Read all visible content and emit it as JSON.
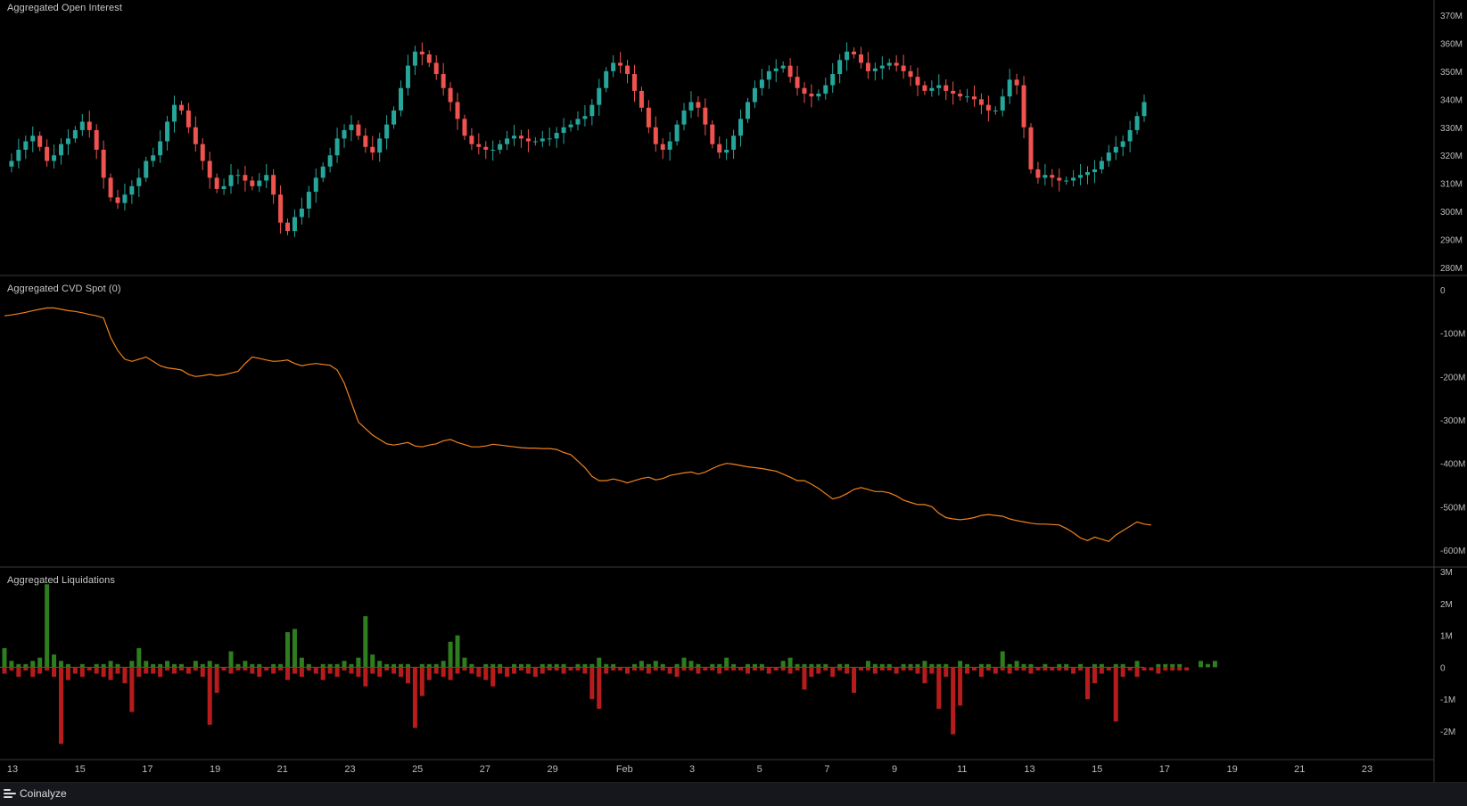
{
  "panels": {
    "oi": {
      "title": "Aggregated Open Interest",
      "ticks": [
        "370M",
        "360M",
        "350M",
        "340M",
        "330M",
        "320M",
        "310M",
        "300M",
        "290M",
        "280M"
      ]
    },
    "cvd": {
      "title": "Aggregated CVD Spot (0)",
      "ticks": [
        "0",
        "-100M",
        "-200M",
        "-300M",
        "-400M",
        "-500M",
        "-600M"
      ]
    },
    "liq": {
      "title": "Aggregated Liquidations",
      "ticks": [
        "3M",
        "2M",
        "1M",
        "0",
        "-1M",
        "-2M"
      ]
    }
  },
  "x_axis": {
    "labels": [
      "13",
      "15",
      "17",
      "19",
      "21",
      "23",
      "25",
      "27",
      "29",
      "Feb",
      "3",
      "5",
      "7",
      "9",
      "11",
      "13",
      "15",
      "17",
      "19",
      "21",
      "23"
    ]
  },
  "footer": {
    "brand": "Coinalyze"
  },
  "colors": {
    "up": "#26a69a",
    "down": "#ef5350",
    "cvd_line": "#f0821e",
    "liq_long": "#2e7d1f",
    "liq_short": "#b71c1c",
    "grid": "#2a2a2a",
    "separator": "#3a3a3a"
  },
  "chart_data": [
    {
      "type": "candlestick",
      "title": "Aggregated Open Interest",
      "unit": "M",
      "ylim": [
        278,
        372
      ],
      "x_range_days": [
        "Jan 13",
        "Feb 15"
      ],
      "series": [
        {
          "name": "Aggregated Open Interest",
          "close_path": [
            316,
            318,
            322,
            325,
            327,
            323,
            318,
            320,
            324,
            326,
            329,
            332,
            329,
            322,
            312,
            305,
            303,
            306,
            309,
            312,
            318,
            320,
            325,
            332,
            338,
            336,
            330,
            324,
            318,
            312,
            308,
            309,
            313,
            313,
            311,
            309,
            311,
            313,
            306,
            296,
            293,
            298,
            301,
            307,
            312,
            316,
            320,
            326,
            329,
            331,
            327,
            323,
            321,
            326,
            331,
            336,
            344,
            352,
            357,
            356,
            353,
            349,
            344,
            339,
            333,
            327,
            324,
            323,
            322,
            322,
            324,
            326,
            327,
            326,
            325,
            325,
            326,
            326,
            328,
            330,
            331,
            333,
            334,
            338,
            344,
            350,
            353,
            352,
            349,
            343,
            337,
            330,
            324,
            322,
            325,
            331,
            336,
            339,
            337,
            331,
            324,
            321,
            322,
            327,
            333,
            339,
            344,
            347,
            350,
            351,
            352,
            348,
            344,
            342,
            341,
            342,
            345,
            349,
            354,
            357,
            356,
            353,
            350,
            351,
            352,
            353,
            352,
            350,
            348,
            345,
            343,
            344,
            345,
            343,
            342,
            341,
            341,
            340,
            338,
            336,
            336,
            341,
            347,
            345,
            330,
            315,
            312,
            313,
            312,
            311,
            311,
            312,
            313,
            314,
            315,
            318,
            321,
            323,
            325,
            329,
            334,
            339,
            336,
            333,
            330,
            329,
            327,
            326,
            325,
            324,
            325,
            327,
            328,
            327,
            326,
            325,
            324
          ]
        }
      ]
    },
    {
      "type": "line",
      "title": "Aggregated CVD Spot (0)",
      "unit": "M",
      "ylim": [
        -650,
        10
      ],
      "series": [
        {
          "name": "Aggregated CVD Spot (0)",
          "values": [
            -60,
            -58,
            -55,
            -52,
            -48,
            -45,
            -42,
            -42,
            -45,
            -48,
            -50,
            -53,
            -57,
            -60,
            -65,
            -110,
            -140,
            -160,
            -165,
            -160,
            -155,
            -165,
            -175,
            -180,
            -182,
            -185,
            -195,
            -200,
            -198,
            -195,
            -198,
            -196,
            -192,
            -188,
            -170,
            -155,
            -158,
            -162,
            -165,
            -164,
            -162,
            -170,
            -175,
            -172,
            -170,
            -172,
            -174,
            -185,
            -215,
            -260,
            -305,
            -320,
            -335,
            -345,
            -355,
            -358,
            -355,
            -352,
            -360,
            -362,
            -358,
            -355,
            -348,
            -345,
            -352,
            -357,
            -362,
            -362,
            -360,
            -356,
            -358,
            -360,
            -362,
            -364,
            -365,
            -365,
            -366,
            -366,
            -368,
            -375,
            -380,
            -395,
            -410,
            -430,
            -440,
            -440,
            -436,
            -440,
            -445,
            -440,
            -435,
            -432,
            -438,
            -435,
            -428,
            -425,
            -422,
            -420,
            -425,
            -420,
            -412,
            -405,
            -400,
            -402,
            -405,
            -408,
            -410,
            -412,
            -415,
            -418,
            -425,
            -432,
            -440,
            -440,
            -448,
            -458,
            -470,
            -482,
            -478,
            -470,
            -460,
            -456,
            -460,
            -465,
            -465,
            -468,
            -475,
            -485,
            -490,
            -495,
            -495,
            -500,
            -515,
            -525,
            -528,
            -530,
            -528,
            -525,
            -520,
            -518,
            -520,
            -522,
            -528,
            -532,
            -535,
            -538,
            -540,
            -540,
            -541,
            -542,
            -550,
            -560,
            -572,
            -578,
            -570,
            -575,
            -580,
            -565,
            -555,
            -545,
            -535,
            -540,
            -542
          ]
        }
      ]
    },
    {
      "type": "bar",
      "title": "Aggregated Liquidations",
      "unit": "M",
      "ylim": [
        -2.9,
        3
      ],
      "series": [
        {
          "name": "long",
          "values": [
            0.6,
            0.2,
            0.1,
            0.1,
            0.2,
            0.3,
            2.6,
            0.4,
            0.2,
            0.1,
            0.0,
            0.1,
            0.0,
            0.1,
            0.1,
            0.2,
            0.1,
            0.0,
            0.2,
            0.6,
            0.2,
            0.1,
            0.1,
            0.2,
            0.1,
            0.1,
            0.0,
            0.2,
            0.1,
            0.2,
            0.1,
            0.0,
            0.5,
            0.1,
            0.2,
            0.1,
            0.1,
            0.0,
            0.1,
            0.1,
            1.1,
            1.2,
            0.3,
            0.1,
            0.0,
            0.1,
            0.1,
            0.1,
            0.2,
            0.1,
            0.3,
            1.6,
            0.4,
            0.2,
            0.1,
            0.1,
            0.1,
            0.1,
            0.0,
            0.1,
            0.1,
            0.1,
            0.2,
            0.8,
            1.0,
            0.3,
            0.1,
            0.0,
            0.1,
            0.1,
            0.1,
            0.0,
            0.1,
            0.1,
            0.1,
            0.0,
            0.1,
            0.1,
            0.1,
            0.1,
            0.0,
            0.1,
            0.1,
            0.1,
            0.3,
            0.1,
            0.1,
            0.0,
            0.0,
            0.1,
            0.2,
            0.1,
            0.2,
            0.1,
            0.0,
            0.1,
            0.3,
            0.2,
            0.1,
            0.0,
            0.1,
            0.1,
            0.3,
            0.1,
            0.0,
            0.1,
            0.1,
            0.1,
            0.0,
            0.0,
            0.2,
            0.3,
            0.1,
            0.1,
            0.1,
            0.1,
            0.1,
            0.0,
            0.1,
            0.1,
            0.0,
            0.0,
            0.2,
            0.1,
            0.1,
            0.1,
            0.0,
            0.1,
            0.1,
            0.1,
            0.2,
            0.1,
            0.1,
            0.1,
            0.0,
            0.2,
            0.1,
            0.0,
            0.1,
            0.1,
            0.0,
            0.5,
            0.1,
            0.2,
            0.1,
            0.1,
            0.0,
            0.1,
            0.0,
            0.1,
            0.1,
            0.0,
            0.1,
            0.0,
            0.1,
            0.1,
            0.0,
            0.1,
            0.1,
            0.0,
            0.2,
            0.0,
            0.0,
            0.1,
            0.1,
            0.1,
            0.1,
            0.0,
            0.0,
            0.2,
            0.1,
            0.2,
            0.0
          ]
        },
        {
          "name": "short",
          "values": [
            -0.2,
            -0.1,
            -0.3,
            -0.1,
            -0.3,
            -0.2,
            -0.1,
            -0.3,
            -2.4,
            -0.4,
            -0.2,
            -0.3,
            -0.1,
            -0.2,
            -0.3,
            -0.4,
            -0.2,
            -0.5,
            -1.4,
            -0.3,
            -0.2,
            -0.2,
            -0.3,
            -0.1,
            -0.2,
            -0.1,
            -0.2,
            -0.1,
            -0.3,
            -1.8,
            -0.8,
            -0.1,
            -0.2,
            -0.1,
            -0.1,
            -0.2,
            -0.3,
            -0.1,
            -0.2,
            -0.1,
            -0.4,
            -0.2,
            -0.3,
            -0.1,
            -0.2,
            -0.4,
            -0.2,
            -0.3,
            -0.1,
            -0.2,
            -0.3,
            -0.6,
            -0.2,
            -0.3,
            -0.1,
            -0.2,
            -0.3,
            -0.5,
            -1.9,
            -0.9,
            -0.4,
            -0.2,
            -0.3,
            -0.4,
            -0.2,
            -0.1,
            -0.2,
            -0.3,
            -0.4,
            -0.6,
            -0.2,
            -0.3,
            -0.2,
            -0.1,
            -0.2,
            -0.3,
            -0.2,
            -0.1,
            -0.1,
            -0.2,
            -0.1,
            -0.1,
            -0.2,
            -1.0,
            -1.3,
            -0.2,
            -0.1,
            -0.1,
            -0.2,
            -0.1,
            -0.1,
            -0.2,
            -0.1,
            -0.1,
            -0.2,
            -0.3,
            -0.1,
            -0.1,
            -0.2,
            -0.1,
            -0.1,
            -0.2,
            -0.1,
            -0.1,
            -0.1,
            -0.2,
            -0.1,
            -0.1,
            -0.2,
            -0.1,
            -0.1,
            -0.2,
            -0.1,
            -0.7,
            -0.3,
            -0.2,
            -0.1,
            -0.3,
            -0.1,
            -0.2,
            -0.8,
            -0.1,
            -0.1,
            -0.2,
            -0.1,
            -0.1,
            -0.2,
            -0.1,
            -0.1,
            -0.2,
            -0.5,
            -0.2,
            -1.3,
            -0.3,
            -2.1,
            -1.2,
            -0.2,
            -0.1,
            -0.3,
            -0.1,
            -0.2,
            -0.1,
            -0.2,
            -0.1,
            -0.1,
            -0.2,
            -0.1,
            -0.1,
            -0.1,
            -0.1,
            -0.1,
            -0.2,
            -0.1,
            -1.0,
            -0.5,
            -0.2,
            -0.1,
            -1.7,
            -0.3,
            -0.1,
            -0.3,
            -0.1,
            -0.1,
            -0.2,
            -0.1,
            -0.1,
            -0.1,
            -0.1
          ]
        }
      ]
    }
  ]
}
